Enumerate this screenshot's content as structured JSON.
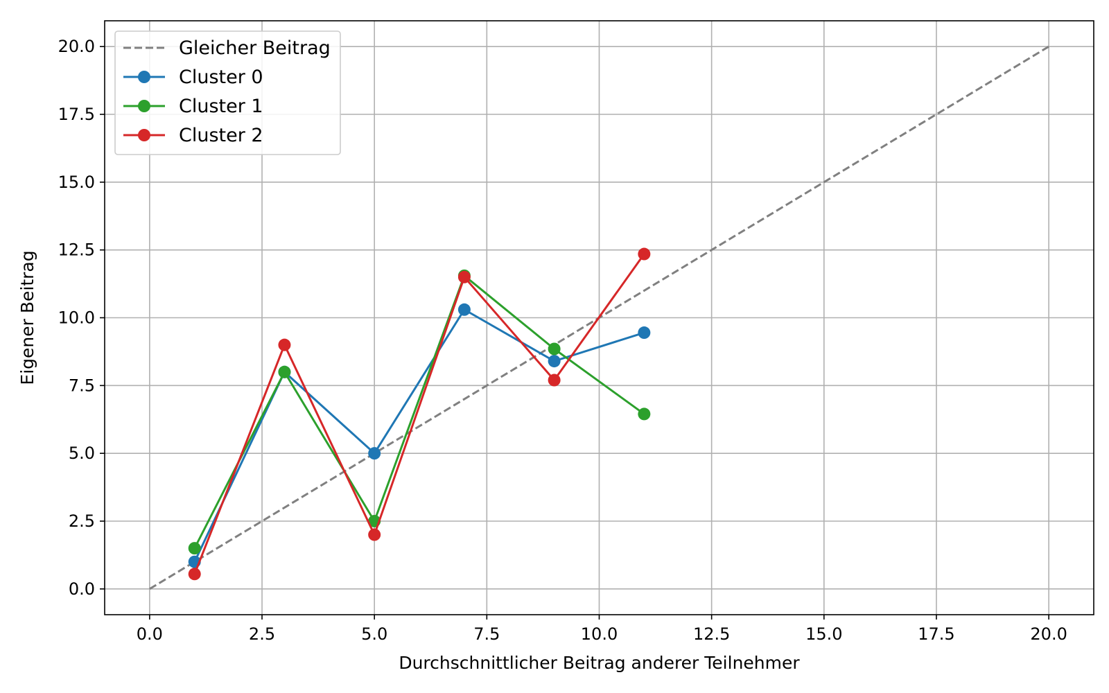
{
  "chart_data": {
    "type": "line",
    "title": "",
    "xlabel": "Durchschnittlicher Beitrag anderer Teilnehmer",
    "ylabel": "Eigener Beitrag",
    "xlim": [
      -1.0,
      21.0
    ],
    "ylim": [
      -0.95,
      20.95
    ],
    "xticks": [
      0.0,
      2.5,
      5.0,
      7.5,
      10.0,
      12.5,
      15.0,
      17.5,
      20.0
    ],
    "yticks": [
      0.0,
      2.5,
      5.0,
      7.5,
      10.0,
      12.5,
      15.0,
      17.5,
      20.0
    ],
    "xtick_labels": [
      "0.0",
      "2.5",
      "5.0",
      "7.5",
      "10.0",
      "12.5",
      "15.0",
      "17.5",
      "20.0"
    ],
    "ytick_labels": [
      "0.0",
      "2.5",
      "5.0",
      "7.5",
      "10.0",
      "12.5",
      "15.0",
      "17.5",
      "20.0"
    ],
    "grid": true,
    "legend_position": "top-left",
    "reference_line": {
      "name": "Gleicher Beitrag",
      "x": [
        0,
        20
      ],
      "y": [
        0,
        20
      ],
      "color": "#808080",
      "style": "dashed"
    },
    "x": [
      1,
      3,
      5,
      7,
      9,
      11
    ],
    "series": [
      {
        "name": "Cluster 0",
        "color": "#1f77b4",
        "values": [
          1.0,
          8.0,
          5.0,
          10.3,
          8.4,
          9.45
        ]
      },
      {
        "name": "Cluster 1",
        "color": "#2ca02c",
        "values": [
          1.5,
          8.0,
          2.5,
          11.55,
          8.85,
          6.45
        ]
      },
      {
        "name": "Cluster 2",
        "color": "#d62728",
        "values": [
          0.55,
          9.0,
          2.0,
          11.5,
          7.7,
          12.35
        ]
      }
    ]
  }
}
